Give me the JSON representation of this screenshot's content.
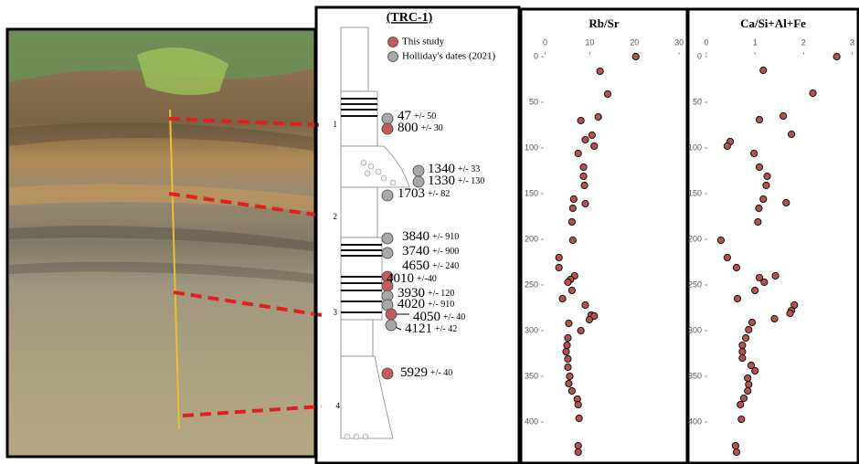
{
  "column": {
    "title": "(TRC-1)",
    "legend": [
      {
        "label": "This study",
        "color": "#c65b5b"
      },
      {
        "label": "Holliday's dates (2021)",
        "color": "#a8a8a8"
      }
    ],
    "markers": [
      "1",
      "2",
      "3",
      "4"
    ],
    "dates": [
      {
        "age": "47",
        "error": "+/- 50",
        "color": "#a8a8a8"
      },
      {
        "age": "800",
        "error": "+/- 30",
        "color": "#c65b5b"
      },
      {
        "age": "1340",
        "error": "+/- 33",
        "color": "#a8a8a8"
      },
      {
        "age": "1330",
        "error": "+/- 130",
        "color": "#a8a8a8"
      },
      {
        "age": "1703",
        "error": "+/- 82",
        "color": "#a8a8a8"
      },
      {
        "age": "3840",
        "error": "+/- 910",
        "color": "#a8a8a8"
      },
      {
        "age": "3740",
        "error": "+/- 900",
        "color": "#a8a8a8"
      },
      {
        "age": "4650",
        "error": "+/- 240",
        "color": "#c65b5b"
      },
      {
        "age": "4010",
        "error": "+/-40",
        "color": "#c65b5b"
      },
      {
        "age": "3930",
        "error": "+/- 120",
        "color": "#a8a8a8"
      },
      {
        "age": "4020",
        "error": "+/- 910",
        "color": "#a8a8a8"
      },
      {
        "age": "4050",
        "error": "+/- 40",
        "color": "#c65b5b"
      },
      {
        "age": "4121",
        "error": "+/- 42",
        "color": "#a8a8a8"
      },
      {
        "age": "5929",
        "error": "+/- 40",
        "color": "#c65b5b"
      }
    ]
  },
  "chart_data": [
    {
      "type": "scatter",
      "title": "Rb/Sr",
      "color": "#b5504c",
      "x": [
        20.3,
        12.3,
        14,
        11.9,
        8,
        10.5,
        9,
        11,
        7.4,
        8.6,
        8.6,
        8.8,
        6.4,
        9,
        6.2,
        6,
        6.2,
        3.1,
        3.1,
        6.6,
        5.7,
        5.1,
        6,
        3.9,
        9,
        10.3,
        11,
        9.9,
        5.3,
        8,
        5.1,
        4.9,
        4.7,
        5.1,
        5.1,
        5.5,
        5.3,
        6,
        7.2,
        7.4,
        7.6,
        7.4,
        7.4
      ],
      "y": [
        0,
        16,
        41,
        66,
        70,
        86,
        91,
        98,
        106,
        121,
        131,
        141,
        156,
        161,
        166,
        181,
        201,
        220,
        231,
        240,
        244,
        247,
        256,
        265,
        272,
        283,
        284,
        288,
        292,
        300,
        308,
        316,
        323,
        331,
        340,
        350,
        358,
        366,
        375,
        381,
        396,
        426,
        433
      ],
      "xlim": [
        -4,
        31
      ],
      "xticks": [
        0,
        10,
        20,
        30
      ],
      "ylim": [
        438,
        0
      ],
      "yticks": [
        0,
        50,
        100,
        150,
        200,
        250,
        300,
        350,
        400
      ]
    },
    {
      "type": "scatter",
      "title": "Ca/Si+Al+Fe",
      "color": "#b5504c",
      "x": [
        2.68,
        1.17,
        2.19,
        1.58,
        1.09,
        1.75,
        0.49,
        0.43,
        0.98,
        1.09,
        1.25,
        1.23,
        1.17,
        1.64,
        1.08,
        1.06,
        0.3,
        0.43,
        0.62,
        1.42,
        1.09,
        1.19,
        1,
        0.64,
        1.81,
        1.75,
        1.72,
        1.4,
        0.94,
        0.87,
        0.81,
        0.74,
        0.74,
        0.74,
        0.92,
        1,
        0.85,
        0.87,
        0.85,
        0.77,
        0.7,
        0.72,
        0.6,
        0.62
      ],
      "y": [
        0,
        15,
        40,
        65,
        69,
        85,
        93,
        98,
        106,
        121,
        131,
        141,
        156,
        160,
        166,
        181,
        201,
        220,
        231,
        240,
        242,
        247,
        256,
        265,
        272,
        278,
        281,
        287,
        291,
        299,
        308,
        316,
        323,
        330,
        338,
        344,
        352,
        359,
        366,
        374,
        381,
        397,
        426,
        433
      ],
      "xlim": [
        -0.3,
        3.1
      ],
      "xticks": [
        0,
        1,
        2,
        3
      ],
      "ylim": [
        438,
        0
      ],
      "yticks": [
        0,
        50,
        100,
        150,
        200,
        250,
        300,
        350,
        400
      ]
    }
  ]
}
